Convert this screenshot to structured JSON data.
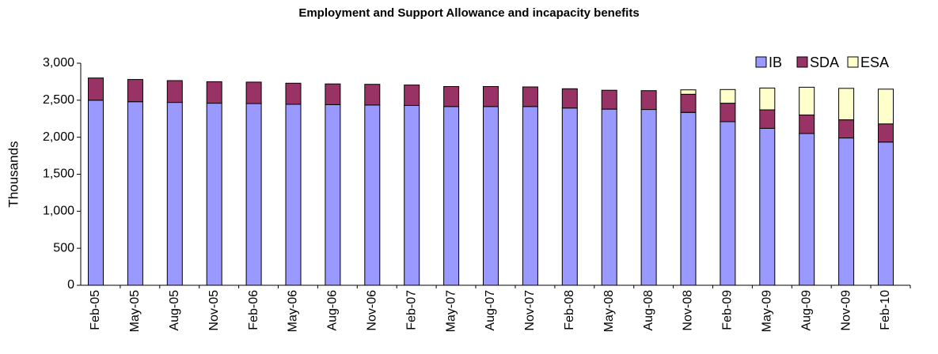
{
  "chart_data": {
    "type": "bar",
    "stacked": true,
    "title": "Employment and Support Allowance and incapacity benefits",
    "ylabel": "Thousands",
    "xlabel": "",
    "ylim": [
      0,
      3000
    ],
    "yticks": [
      "0",
      "500",
      "1,000",
      "1,500",
      "2,000",
      "2,500",
      "3,000"
    ],
    "ytick_values": [
      0,
      500,
      1000,
      1500,
      2000,
      2500,
      3000
    ],
    "grid": false,
    "legend_position": "top-right",
    "categories": [
      "Feb-05",
      "May-05",
      "Aug-05",
      "Nov-05",
      "Feb-06",
      "May-06",
      "Aug-06",
      "Nov-06",
      "Feb-07",
      "May-07",
      "Aug-07",
      "Nov-07",
      "Feb-08",
      "May-08",
      "Aug-08",
      "Nov-08",
      "Feb-09",
      "May-09",
      "Aug-09",
      "Nov-09",
      "Feb-10"
    ],
    "series": [
      {
        "name": "IB",
        "color": "#9999ff",
        "values": [
          2500,
          2480,
          2470,
          2460,
          2455,
          2445,
          2440,
          2435,
          2430,
          2415,
          2415,
          2415,
          2395,
          2380,
          2375,
          2335,
          2210,
          2120,
          2050,
          1990,
          1935
        ]
      },
      {
        "name": "SDA",
        "color": "#993366",
        "values": [
          300,
          300,
          295,
          290,
          290,
          285,
          280,
          280,
          275,
          270,
          270,
          265,
          260,
          255,
          255,
          245,
          250,
          250,
          250,
          245,
          245
        ]
      },
      {
        "name": "ESA",
        "color": "#ffffcc",
        "values": [
          0,
          0,
          0,
          0,
          0,
          0,
          0,
          0,
          0,
          0,
          0,
          0,
          0,
          0,
          0,
          60,
          185,
          295,
          375,
          425,
          470
        ]
      }
    ]
  }
}
